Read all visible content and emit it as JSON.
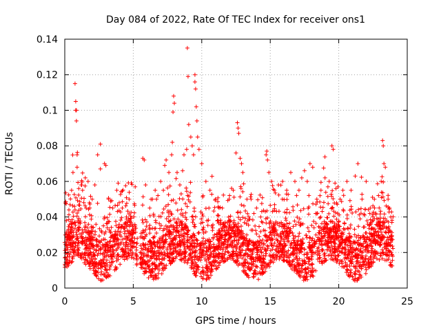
{
  "chart_data": {
    "type": "scatter",
    "title": "Day 084 of 2022, Rate Of TEC Index for receiver ons1",
    "xlabel": "GPS time / hours",
    "ylabel": "ROTI / TECUs",
    "xlim": [
      0,
      25
    ],
    "ylim": [
      0,
      0.14
    ],
    "xticks": [
      0,
      5,
      10,
      15,
      20,
      25
    ],
    "yticks": [
      0,
      0.02,
      0.04,
      0.06,
      0.08,
      0.1,
      0.12,
      0.14
    ],
    "xtick_labels": [
      "0",
      "5",
      "10",
      "15",
      "20",
      "25"
    ],
    "ytick_labels": [
      "0",
      "0.02",
      "0.04",
      "0.06",
      "0.08",
      "0.1",
      "0.12",
      "0.14"
    ],
    "grid": true,
    "marker": "+",
    "color": "#ff0000",
    "data_gap_hours": [
      5.3,
      5.5
    ],
    "series": [
      {
        "points": [
          [
            0.3,
            0.044
          ],
          [
            0.5,
            0.055
          ],
          [
            0.6,
            0.065
          ],
          [
            0.75,
            0.115
          ],
          [
            0.8,
            0.105
          ],
          [
            0.8,
            0.1
          ],
          [
            0.85,
            0.1
          ],
          [
            0.85,
            0.094
          ],
          [
            0.9,
            0.075
          ],
          [
            0.9,
            0.068
          ],
          [
            1.2,
            0.058
          ],
          [
            1.3,
            0.055
          ],
          [
            1.5,
            0.062
          ],
          [
            1.7,
            0.06
          ],
          [
            1.8,
            0.048
          ],
          [
            2.0,
            0.05
          ],
          [
            2.2,
            0.058
          ],
          [
            2.4,
            0.075
          ],
          [
            2.6,
            0.081
          ],
          [
            2.6,
            0.067
          ],
          [
            2.9,
            0.07
          ],
          [
            3.0,
            0.069
          ],
          [
            3.2,
            0.05
          ],
          [
            3.5,
            0.045
          ],
          [
            3.8,
            0.055
          ],
          [
            3.9,
            0.059
          ],
          [
            4.2,
            0.045
          ],
          [
            4.5,
            0.04
          ],
          [
            4.7,
            0.05
          ],
          [
            4.9,
            0.03
          ],
          [
            5.7,
            0.073
          ],
          [
            5.8,
            0.072
          ],
          [
            5.9,
            0.058
          ],
          [
            6.2,
            0.045
          ],
          [
            6.4,
            0.05
          ],
          [
            6.6,
            0.055
          ],
          [
            6.7,
            0.05
          ],
          [
            6.8,
            0.052
          ],
          [
            7.0,
            0.06
          ],
          [
            7.2,
            0.055
          ],
          [
            7.3,
            0.069
          ],
          [
            7.4,
            0.072
          ],
          [
            7.6,
            0.065
          ],
          [
            7.8,
            0.075
          ],
          [
            7.85,
            0.082
          ],
          [
            7.9,
            0.099
          ],
          [
            7.95,
            0.108
          ],
          [
            8.0,
            0.104
          ],
          [
            8.2,
            0.065
          ],
          [
            8.4,
            0.058
          ],
          [
            8.6,
            0.066
          ],
          [
            8.7,
            0.075
          ],
          [
            8.9,
            0.078
          ],
          [
            8.95,
            0.135
          ],
          [
            9.0,
            0.119
          ],
          [
            9.05,
            0.092
          ],
          [
            9.2,
            0.085
          ],
          [
            9.3,
            0.08
          ],
          [
            9.4,
            0.075
          ],
          [
            9.5,
            0.12
          ],
          [
            9.5,
            0.116
          ],
          [
            9.55,
            0.112
          ],
          [
            9.6,
            0.102
          ],
          [
            9.65,
            0.094
          ],
          [
            9.7,
            0.085
          ],
          [
            9.8,
            0.078
          ],
          [
            10.0,
            0.07
          ],
          [
            10.3,
            0.06
          ],
          [
            10.6,
            0.055
          ],
          [
            11.0,
            0.05
          ],
          [
            11.5,
            0.045
          ],
          [
            12.0,
            0.05
          ],
          [
            12.3,
            0.055
          ],
          [
            12.5,
            0.076
          ],
          [
            12.6,
            0.093
          ],
          [
            12.65,
            0.09
          ],
          [
            12.7,
            0.087
          ],
          [
            12.8,
            0.073
          ],
          [
            12.9,
            0.07
          ],
          [
            13.0,
            0.065
          ],
          [
            13.3,
            0.05
          ],
          [
            13.6,
            0.05
          ],
          [
            14.0,
            0.045
          ],
          [
            14.3,
            0.04
          ],
          [
            14.7,
            0.075
          ],
          [
            14.75,
            0.077
          ],
          [
            14.8,
            0.072
          ],
          [
            14.9,
            0.065
          ],
          [
            15.1,
            0.06
          ],
          [
            15.3,
            0.055
          ],
          [
            15.6,
            0.058
          ],
          [
            15.9,
            0.06
          ],
          [
            16.2,
            0.055
          ],
          [
            16.5,
            0.065
          ],
          [
            16.8,
            0.06
          ],
          [
            17.1,
            0.055
          ],
          [
            17.3,
            0.062
          ],
          [
            17.5,
            0.066
          ],
          [
            17.7,
            0.06
          ],
          [
            17.9,
            0.07
          ],
          [
            18.1,
            0.068
          ],
          [
            18.4,
            0.05
          ],
          [
            18.7,
            0.055
          ],
          [
            19.0,
            0.062
          ],
          [
            19.3,
            0.06
          ],
          [
            19.5,
            0.08
          ],
          [
            19.6,
            0.078
          ],
          [
            19.8,
            0.056
          ],
          [
            20.1,
            0.05
          ],
          [
            20.3,
            0.055
          ],
          [
            20.6,
            0.06
          ],
          [
            20.9,
            0.055
          ],
          [
            21.2,
            0.063
          ],
          [
            21.4,
            0.07
          ],
          [
            21.7,
            0.05
          ],
          [
            22.0,
            0.06
          ],
          [
            22.3,
            0.045
          ],
          [
            22.6,
            0.05
          ],
          [
            22.9,
            0.052
          ],
          [
            23.1,
            0.06
          ],
          [
            23.2,
            0.083
          ],
          [
            23.25,
            0.08
          ],
          [
            23.3,
            0.07
          ],
          [
            23.4,
            0.068
          ],
          [
            23.6,
            0.05
          ],
          [
            23.8,
            0.04
          ]
        ]
      }
    ]
  }
}
